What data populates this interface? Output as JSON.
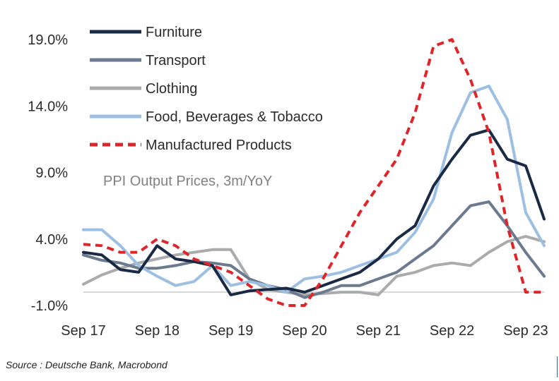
{
  "chart_data": {
    "type": "line",
    "subtitle": "PPI Output Prices, 3m/YoY",
    "source": "Source : Deutsche Bank, Macrobond",
    "x_ticks": [
      "Sep 17",
      "Sep 18",
      "Sep 19",
      "Sep 20",
      "Sep 21",
      "Sep 22",
      "Sep 23"
    ],
    "y_ticks": [
      "19.0%",
      "14.0%",
      "9.0%",
      "4.0%",
      "-1.0%"
    ],
    "ylim": [
      -1.0,
      19.0
    ],
    "x_range": [
      "2017-09",
      "2023-12"
    ],
    "grid": false,
    "legend_position": "top-left",
    "series": [
      {
        "name": "Furniture",
        "color": "#1a2a44",
        "dash": "solid",
        "x": [
          "2017-09",
          "2017-12",
          "2018-03",
          "2018-06",
          "2018-09",
          "2018-12",
          "2019-03",
          "2019-06",
          "2019-09",
          "2019-12",
          "2020-03",
          "2020-06",
          "2020-09",
          "2020-12",
          "2021-03",
          "2021-06",
          "2021-09",
          "2021-12",
          "2022-03",
          "2022-06",
          "2022-09",
          "2022-12",
          "2023-03",
          "2023-06",
          "2023-09",
          "2023-12"
        ],
        "y": [
          3.0,
          2.8,
          1.7,
          1.5,
          3.5,
          2.5,
          2.3,
          2.0,
          -0.2,
          0.1,
          0.2,
          0.3,
          0.0,
          0.5,
          1.0,
          1.5,
          2.5,
          4.0,
          5.0,
          8.0,
          10.0,
          11.8,
          12.2,
          10.0,
          9.5,
          5.5
        ]
      },
      {
        "name": "Transport",
        "color": "#6b7a8f",
        "dash": "solid",
        "x": [
          "2017-09",
          "2017-12",
          "2018-03",
          "2018-06",
          "2018-09",
          "2018-12",
          "2019-03",
          "2019-06",
          "2019-09",
          "2019-12",
          "2020-03",
          "2020-06",
          "2020-09",
          "2020-12",
          "2021-03",
          "2021-06",
          "2021-09",
          "2021-12",
          "2022-03",
          "2022-06",
          "2022-09",
          "2022-12",
          "2023-03",
          "2023-06",
          "2023-09",
          "2023-12"
        ],
        "y": [
          2.8,
          2.4,
          2.2,
          1.8,
          1.8,
          2.0,
          2.3,
          2.2,
          2.0,
          1.0,
          0.5,
          0.2,
          -0.4,
          0.0,
          0.5,
          0.5,
          1.0,
          1.5,
          2.5,
          3.5,
          5.0,
          6.5,
          6.8,
          5.0,
          3.0,
          1.2
        ]
      },
      {
        "name": "Clothing",
        "color": "#a9abad",
        "dash": "solid",
        "x": [
          "2017-09",
          "2017-12",
          "2018-03",
          "2018-06",
          "2018-09",
          "2018-12",
          "2019-03",
          "2019-06",
          "2019-09",
          "2019-12",
          "2020-03",
          "2020-06",
          "2020-09",
          "2020-12",
          "2021-03",
          "2021-06",
          "2021-09",
          "2021-12",
          "2022-03",
          "2022-06",
          "2022-09",
          "2022-12",
          "2023-03",
          "2023-06",
          "2023-09",
          "2023-12"
        ],
        "y": [
          0.6,
          1.3,
          1.8,
          2.2,
          2.5,
          2.8,
          3.0,
          3.2,
          3.2,
          1.0,
          0.2,
          0.0,
          -0.2,
          -0.1,
          0.0,
          0.0,
          -0.2,
          1.2,
          1.5,
          2.0,
          2.2,
          2.0,
          3.0,
          3.8,
          4.2,
          3.8
        ]
      },
      {
        "name": "Food, Beverages & Tobacco",
        "color": "#9dbfe1",
        "dash": "solid",
        "x": [
          "2017-09",
          "2017-12",
          "2018-03",
          "2018-06",
          "2018-09",
          "2018-12",
          "2019-03",
          "2019-06",
          "2019-09",
          "2019-12",
          "2020-03",
          "2020-06",
          "2020-09",
          "2020-12",
          "2021-03",
          "2021-06",
          "2021-09",
          "2021-12",
          "2022-03",
          "2022-06",
          "2022-09",
          "2022-12",
          "2023-03",
          "2023-06",
          "2023-09",
          "2023-12"
        ],
        "y": [
          4.7,
          4.7,
          3.5,
          2.0,
          1.2,
          0.5,
          0.8,
          2.0,
          0.5,
          0.8,
          0.5,
          0.0,
          1.0,
          1.2,
          1.5,
          2.0,
          2.5,
          3.0,
          4.5,
          7.0,
          12.0,
          15.0,
          15.5,
          13.0,
          6.0,
          3.5
        ]
      },
      {
        "name": "Manufactured Products",
        "color": "#e0252a",
        "dash": "dashed",
        "x": [
          "2017-09",
          "2017-12",
          "2018-03",
          "2018-06",
          "2018-09",
          "2018-12",
          "2019-03",
          "2019-06",
          "2019-09",
          "2019-12",
          "2020-03",
          "2020-06",
          "2020-09",
          "2020-12",
          "2021-03",
          "2021-06",
          "2021-09",
          "2021-12",
          "2022-03",
          "2022-06",
          "2022-09",
          "2022-12",
          "2023-03",
          "2023-06",
          "2023-09",
          "2023-12"
        ],
        "y": [
          3.6,
          3.5,
          3.0,
          3.0,
          4.0,
          3.5,
          2.5,
          2.0,
          1.5,
          0.5,
          -0.5,
          -1.0,
          -1.0,
          1.0,
          3.5,
          6.0,
          8.0,
          10.0,
          13.5,
          18.5,
          19.0,
          16.0,
          12.0,
          5.0,
          0.0,
          0.0
        ]
      }
    ]
  }
}
